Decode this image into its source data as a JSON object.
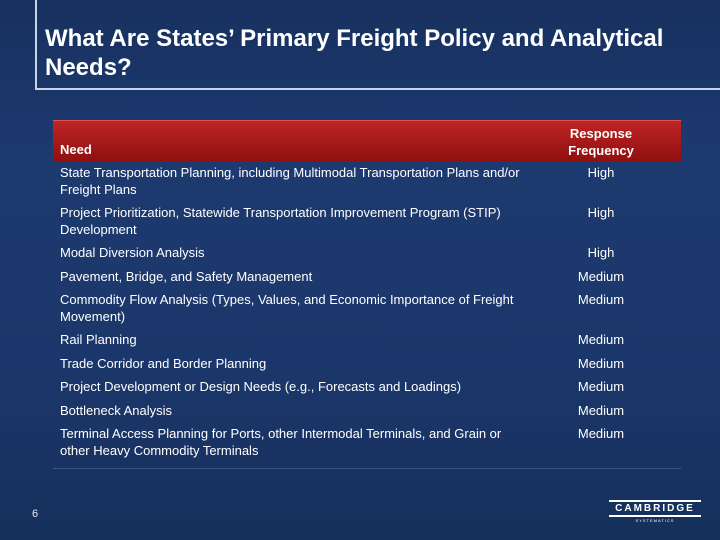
{
  "title": "What Are States’ Primary Freight Policy and Analytical Needs?",
  "table": {
    "header": {
      "need": "Need",
      "frequency": "Response\nFrequency"
    },
    "rows": [
      {
        "need": "State Transportation Planning, including Multimodal Transportation Plans and/or Freight Plans",
        "frequency": "High"
      },
      {
        "need": "Project Prioritization, Statewide Transportation Improvement Program (STIP) Development",
        "frequency": "High"
      },
      {
        "need": "Modal Diversion Analysis",
        "frequency": "High"
      },
      {
        "need": "Pavement, Bridge, and Safety Management",
        "frequency": "Medium"
      },
      {
        "need": "Commodity Flow Analysis (Types, Values, and Economic Importance of Freight Movement)",
        "frequency": "Medium"
      },
      {
        "need": "Rail Planning",
        "frequency": "Medium"
      },
      {
        "need": "Trade Corridor and Border Planning",
        "frequency": "Medium"
      },
      {
        "need": "Project Development or Design Needs (e.g., Forecasts and Loadings)",
        "frequency": "Medium"
      },
      {
        "need": "Bottleneck Analysis",
        "frequency": "Medium"
      },
      {
        "need": "Terminal Access Planning for Ports, other Intermodal Terminals, and Grain or other Heavy Commodity Terminals",
        "frequency": "Medium"
      }
    ]
  },
  "page_number": "6",
  "logo": {
    "name": "CAMBRIDGE",
    "sub": "SYSTEMATICS"
  }
}
